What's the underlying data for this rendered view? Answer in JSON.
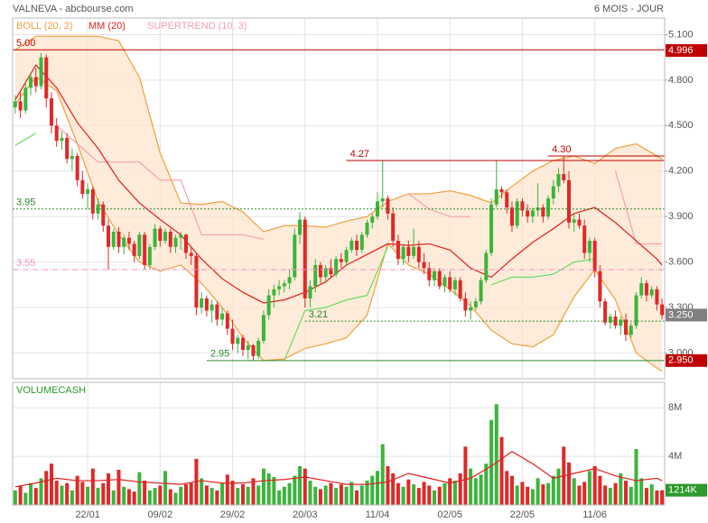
{
  "chart_data": {
    "type": "candlestick",
    "title": "VALNEVA - abcbourse.com",
    "period": "6 MOIS - JOUR",
    "xlim": [
      -0.5,
      125.5
    ],
    "xticks": [
      {
        "value": 14,
        "label": "22/01"
      },
      {
        "value": 28,
        "label": "09/02"
      },
      {
        "value": 42,
        "label": "29/02"
      },
      {
        "value": 56,
        "label": "20/03"
      },
      {
        "value": 70,
        "label": "11/04"
      },
      {
        "value": 84,
        "label": "02/05"
      },
      {
        "value": 98,
        "label": "22/05"
      },
      {
        "value": 112,
        "label": "11/06"
      }
    ],
    "ylim": [
      2.83,
      5.21
    ],
    "yticks": [
      {
        "value": 3,
        "label": "3.000"
      },
      {
        "value": 3.3,
        "label": "3.300"
      },
      {
        "value": 3.6,
        "label": "3.600"
      },
      {
        "value": 3.9,
        "label": "3.900"
      },
      {
        "value": 4.2,
        "label": "4.200"
      },
      {
        "value": 4.5,
        "label": "4.500"
      },
      {
        "value": 4.8,
        "label": "4.800"
      },
      {
        "value": 5.1,
        "label": "5.100"
      }
    ],
    "grid": true,
    "up_color": "#3cb43c",
    "down_color": "#e02828",
    "ohlc": [
      [
        4.62,
        4.7,
        4.58,
        4.66
      ],
      [
        4.66,
        4.72,
        4.55,
        4.6
      ],
      [
        4.6,
        4.78,
        4.58,
        4.75
      ],
      [
        4.75,
        4.85,
        4.7,
        4.82
      ],
      [
        4.82,
        4.88,
        4.72,
        4.76
      ],
      [
        4.76,
        4.98,
        4.74,
        4.95
      ],
      [
        4.95,
        4.97,
        4.62,
        4.68
      ],
      [
        4.68,
        4.72,
        4.45,
        4.5
      ],
      [
        4.5,
        4.55,
        4.36,
        4.4
      ],
      [
        4.4,
        4.46,
        4.34,
        4.42
      ],
      [
        4.42,
        4.45,
        4.25,
        4.28
      ],
      [
        4.28,
        4.35,
        4.2,
        4.3
      ],
      [
        4.3,
        4.32,
        4.1,
        4.14
      ],
      [
        4.14,
        4.2,
        4.02,
        4.05
      ],
      [
        4.05,
        4.12,
        3.95,
        4.08
      ],
      [
        4.08,
        4.1,
        3.88,
        3.92
      ],
      [
        3.92,
        4.02,
        3.88,
        3.98
      ],
      [
        3.98,
        4.0,
        3.8,
        3.84
      ],
      [
        3.84,
        3.88,
        3.55,
        3.7
      ],
      [
        3.7,
        3.82,
        3.68,
        3.8
      ],
      [
        3.8,
        3.83,
        3.66,
        3.7
      ],
      [
        3.7,
        3.78,
        3.65,
        3.76
      ],
      [
        3.76,
        3.8,
        3.68,
        3.72
      ],
      [
        3.72,
        3.74,
        3.6,
        3.64
      ],
      [
        3.64,
        3.8,
        3.62,
        3.78
      ],
      [
        3.78,
        3.8,
        3.55,
        3.58
      ],
      [
        3.58,
        3.72,
        3.55,
        3.7
      ],
      [
        3.7,
        3.85,
        3.68,
        3.82
      ],
      [
        3.82,
        3.84,
        3.7,
        3.74
      ],
      [
        3.74,
        3.82,
        3.72,
        3.8
      ],
      [
        3.8,
        3.82,
        3.66,
        3.7
      ],
      [
        3.7,
        3.78,
        3.66,
        3.76
      ],
      [
        3.76,
        3.8,
        3.68,
        3.78
      ],
      [
        3.78,
        3.79,
        3.62,
        3.66
      ],
      [
        3.66,
        3.7,
        3.58,
        3.64
      ],
      [
        3.64,
        3.66,
        3.25,
        3.3
      ],
      [
        3.3,
        3.4,
        3.26,
        3.36
      ],
      [
        3.36,
        3.38,
        3.24,
        3.28
      ],
      [
        3.28,
        3.35,
        3.2,
        3.32
      ],
      [
        3.32,
        3.34,
        3.18,
        3.22
      ],
      [
        3.22,
        3.3,
        3.18,
        3.26
      ],
      [
        3.26,
        3.28,
        3.12,
        3.16
      ],
      [
        3.16,
        3.22,
        3.02,
        3.06
      ],
      [
        3.06,
        3.12,
        3.0,
        3.1
      ],
      [
        3.1,
        3.12,
        2.98,
        3.02
      ],
      [
        3.02,
        3.08,
        2.96,
        3.05
      ],
      [
        3.05,
        3.06,
        2.95,
        2.98
      ],
      [
        2.98,
        3.1,
        2.96,
        3.08
      ],
      [
        3.08,
        3.28,
        3.06,
        3.25
      ],
      [
        3.25,
        3.42,
        3.22,
        3.38
      ],
      [
        3.38,
        3.45,
        3.3,
        3.42
      ],
      [
        3.42,
        3.48,
        3.38,
        3.44
      ],
      [
        3.44,
        3.48,
        3.4,
        3.46
      ],
      [
        3.46,
        3.55,
        3.42,
        3.5
      ],
      [
        3.5,
        3.82,
        3.48,
        3.78
      ],
      [
        3.78,
        3.93,
        3.72,
        3.88
      ],
      [
        3.88,
        3.9,
        3.3,
        3.36
      ],
      [
        3.36,
        3.48,
        3.3,
        3.44
      ],
      [
        3.44,
        3.62,
        3.4,
        3.58
      ],
      [
        3.58,
        3.6,
        3.46,
        3.5
      ],
      [
        3.5,
        3.58,
        3.46,
        3.56
      ],
      [
        3.56,
        3.62,
        3.5,
        3.52
      ],
      [
        3.52,
        3.64,
        3.5,
        3.62
      ],
      [
        3.62,
        3.66,
        3.56,
        3.6
      ],
      [
        3.6,
        3.7,
        3.58,
        3.68
      ],
      [
        3.68,
        3.76,
        3.66,
        3.74
      ],
      [
        3.74,
        3.78,
        3.64,
        3.68
      ],
      [
        3.68,
        3.8,
        3.66,
        3.78
      ],
      [
        3.78,
        3.88,
        3.76,
        3.86
      ],
      [
        3.86,
        3.92,
        3.82,
        3.9
      ],
      [
        3.9,
        4.06,
        3.88,
        4.0
      ],
      [
        4.0,
        4.27,
        3.96,
        4.02
      ],
      [
        4.02,
        4.04,
        3.88,
        3.92
      ],
      [
        3.92,
        3.96,
        3.7,
        3.74
      ],
      [
        3.74,
        3.78,
        3.58,
        3.62
      ],
      [
        3.62,
        3.72,
        3.58,
        3.7
      ],
      [
        3.7,
        3.74,
        3.6,
        3.64
      ],
      [
        3.64,
        3.82,
        3.62,
        3.7
      ],
      [
        3.7,
        3.74,
        3.56,
        3.6
      ],
      [
        3.6,
        3.66,
        3.52,
        3.56
      ],
      [
        3.56,
        3.6,
        3.44,
        3.48
      ],
      [
        3.48,
        3.56,
        3.44,
        3.54
      ],
      [
        3.54,
        3.56,
        3.42,
        3.44
      ],
      [
        3.44,
        3.52,
        3.4,
        3.5
      ],
      [
        3.5,
        3.54,
        3.4,
        3.42
      ],
      [
        3.42,
        3.5,
        3.38,
        3.48
      ],
      [
        3.48,
        3.5,
        3.34,
        3.36
      ],
      [
        3.36,
        3.4,
        3.24,
        3.28
      ],
      [
        3.28,
        3.34,
        3.22,
        3.3
      ],
      [
        3.3,
        3.36,
        3.28,
        3.34
      ],
      [
        3.34,
        3.5,
        3.32,
        3.48
      ],
      [
        3.48,
        3.68,
        3.46,
        3.66
      ],
      [
        3.66,
        4.02,
        3.64,
        3.98
      ],
      [
        3.98,
        4.27,
        3.96,
        4.08
      ],
      [
        4.08,
        4.1,
        4.02,
        4.06
      ],
      [
        4.06,
        4.08,
        3.92,
        3.96
      ],
      [
        3.96,
        4.0,
        3.8,
        3.84
      ],
      [
        3.84,
        4.02,
        3.82,
        4.0
      ],
      [
        4.0,
        4.02,
        3.9,
        3.94
      ],
      [
        3.94,
        3.98,
        3.86,
        3.9
      ],
      [
        3.9,
        3.96,
        3.86,
        3.94
      ],
      [
        3.94,
        4.12,
        3.9,
        3.96
      ],
      [
        3.96,
        3.98,
        3.86,
        3.9
      ],
      [
        3.9,
        4.04,
        3.88,
        4.02
      ],
      [
        4.02,
        4.14,
        3.98,
        4.1
      ],
      [
        4.1,
        4.22,
        4.06,
        4.18
      ],
      [
        4.18,
        4.3,
        4.12,
        4.14
      ],
      [
        4.14,
        4.2,
        3.82,
        3.86
      ],
      [
        3.86,
        3.92,
        3.8,
        3.88
      ],
      [
        3.88,
        3.92,
        3.82,
        3.84
      ],
      [
        3.84,
        3.88,
        3.62,
        3.66
      ],
      [
        3.66,
        3.76,
        3.6,
        3.74
      ],
      [
        3.74,
        3.76,
        3.5,
        3.54
      ],
      [
        3.54,
        3.58,
        3.3,
        3.34
      ],
      [
        3.34,
        3.36,
        3.18,
        3.2
      ],
      [
        3.2,
        3.26,
        3.16,
        3.24
      ],
      [
        3.24,
        3.28,
        3.16,
        3.18
      ],
      [
        3.18,
        3.24,
        3.12,
        3.22
      ],
      [
        3.22,
        3.26,
        3.08,
        3.12
      ],
      [
        3.12,
        3.2,
        3.1,
        3.18
      ],
      [
        3.18,
        3.4,
        3.16,
        3.38
      ],
      [
        3.38,
        3.5,
        3.36,
        3.46
      ],
      [
        3.46,
        3.48,
        3.34,
        3.38
      ],
      [
        3.38,
        3.44,
        3.36,
        3.42
      ],
      [
        3.42,
        3.44,
        3.28,
        3.32
      ],
      [
        3.32,
        3.36,
        3.22,
        3.25
      ]
    ],
    "overlay_x": [
      0,
      4,
      8,
      12,
      16,
      20,
      24,
      28,
      32,
      36,
      40,
      44,
      48,
      52,
      56,
      60,
      64,
      68,
      72,
      76,
      80,
      84,
      88,
      92,
      96,
      100,
      104,
      108,
      112,
      116,
      120,
      124,
      125
    ],
    "overlays": {
      "boll": {
        "name": "BOLL (20, 2)",
        "color": "#f0a040",
        "fill": "#fde4cc",
        "upper": [
          5.0,
          5.09,
          5.09,
          5.09,
          5.09,
          5.06,
          4.82,
          4.32,
          3.99,
          3.98,
          4.0,
          3.93,
          3.8,
          3.84,
          3.84,
          3.83,
          3.87,
          3.9,
          4.0,
          4.05,
          4.05,
          4.07,
          4.04,
          3.99,
          4.1,
          4.2,
          4.27,
          4.3,
          4.25,
          4.35,
          4.38,
          4.3,
          4.28
        ],
        "lower": [
          4.64,
          4.82,
          4.73,
          4.38,
          4.0,
          3.78,
          3.6,
          3.54,
          3.58,
          3.46,
          3.3,
          3.1,
          2.95,
          2.96,
          3.03,
          3.06,
          3.1,
          3.25,
          3.72,
          3.58,
          3.52,
          3.42,
          3.31,
          3.15,
          3.06,
          3.04,
          3.12,
          3.37,
          3.55,
          3.35,
          3.0,
          2.9,
          2.88
        ]
      },
      "mm": {
        "name": "MM (20)",
        "color": "#e02020",
        "values": [
          4.67,
          4.9,
          4.75,
          4.52,
          4.35,
          4.14,
          3.99,
          3.88,
          3.78,
          3.62,
          3.49,
          3.4,
          3.33,
          3.35,
          3.4,
          3.47,
          3.58,
          3.65,
          3.72,
          3.71,
          3.72,
          3.68,
          3.56,
          3.5,
          3.62,
          3.73,
          3.82,
          3.92,
          3.96,
          3.86,
          3.74,
          3.62,
          3.58
        ]
      },
      "supertrend": {
        "name": "SUPERTREND (10, 3)",
        "color": "#f4a0b0",
        "values": [
          null,
          null,
          4.5,
          4.38,
          4.26,
          4.26,
          4.26,
          4.14,
          4.14,
          3.78,
          3.78,
          3.78,
          3.75,
          null,
          null,
          null,
          null,
          null,
          null,
          4.05,
          3.95,
          3.9,
          3.9,
          null,
          null,
          null,
          null,
          null,
          null,
          4.2,
          3.72,
          3.72,
          3.72
        ],
        "up_color": "#66dd66",
        "up_values": [
          4.37,
          4.45,
          null,
          null,
          null,
          null,
          null,
          null,
          null,
          null,
          null,
          null,
          null,
          2.95,
          3.28,
          3.3,
          3.35,
          3.38,
          3.7,
          null,
          null,
          null,
          null,
          3.45,
          3.5,
          3.5,
          3.52,
          3.6,
          3.62,
          null,
          null,
          null,
          null
        ]
      }
    },
    "levels": [
      {
        "value": 5.0,
        "label": "5.00",
        "color": "#c00000",
        "style": "solid",
        "start": -0.5
      },
      {
        "value": 4.27,
        "label": "4.27",
        "color": "#c00000",
        "style": "solid",
        "start": 64
      },
      {
        "value": 4.3,
        "label": "4.30",
        "color": "#c00000",
        "style": "solid",
        "start": 103
      },
      {
        "value": 3.95,
        "label": "3.95",
        "color": "#2a8a2a",
        "style": "dotted",
        "start": -0.5
      },
      {
        "value": 3.55,
        "label": "3.55",
        "color": "#f090c8",
        "style": "dashdot",
        "start": -0.5
      },
      {
        "value": 3.21,
        "label": "3.21",
        "color": "#2a8a2a",
        "style": "dotted",
        "start": 56
      },
      {
        "value": 2.95,
        "label": "2.95",
        "color": "#2a8a2a",
        "style": "solid",
        "start": 37
      }
    ],
    "badges": [
      {
        "value": 4.996,
        "label": "4.996",
        "color": "#c00000"
      },
      {
        "value": 3.25,
        "label": "3.250",
        "color": "#808080"
      },
      {
        "value": 2.95,
        "label": "2.950",
        "color": "#c00000"
      }
    ],
    "volume": {
      "title": "VOLUMECASH",
      "ylim": [
        0,
        10.1
      ],
      "yticks": [
        {
          "value": 4,
          "label": "4M"
        },
        {
          "value": 8,
          "label": "8M"
        }
      ],
      "values": [
        1.2,
        1.6,
        1.0,
        1.8,
        1.4,
        2.2,
        2.8,
        3.4,
        2.0,
        1.6,
        1.8,
        1.2,
        2.4,
        1.9,
        1.5,
        3.0,
        1.4,
        1.8,
        2.6,
        1.2,
        2.9,
        1.5,
        1.3,
        1.1,
        2.7,
        2.0,
        1.2,
        1.4,
        1.6,
        2.8,
        1.3,
        1.0,
        1.5,
        1.7,
        1.8,
        3.8,
        2.2,
        1.6,
        1.4,
        1.2,
        1.8,
        2.5,
        2.0,
        1.4,
        1.7,
        1.5,
        2.2,
        1.6,
        3.0,
        2.6,
        2.3,
        1.2,
        1.5,
        1.8,
        2.4,
        3.2,
        3.0,
        2.0,
        1.5,
        1.3,
        1.6,
        1.8,
        1.4,
        1.7,
        1.5,
        1.9,
        1.2,
        1.6,
        2.0,
        2.4,
        2.8,
        5.0,
        3.2,
        2.6,
        1.8,
        1.5,
        2.1,
        1.7,
        1.4,
        1.9,
        1.6,
        1.2,
        1.5,
        1.8,
        2.2,
        2.0,
        2.6,
        4.8,
        3.0,
        2.2,
        2.5,
        3.4,
        7.0,
        8.3,
        5.6,
        2.8,
        2.4,
        1.6,
        1.9,
        1.5,
        1.3,
        2.2,
        1.7,
        1.8,
        2.4,
        3.0,
        4.8,
        3.5,
        2.2,
        1.6,
        1.9,
        2.8,
        3.2,
        2.4,
        1.6,
        1.4,
        1.8,
        2.6,
        2.0,
        1.5,
        4.6,
        2.2,
        1.4,
        1.7,
        1.2,
        1.214
      ],
      "ma_color": "#e02020",
      "ma": [
        1.5,
        1.8,
        2.2,
        2.0,
        2.0,
        2.1,
        1.9,
        1.8,
        1.7,
        2.0,
        1.8,
        1.8,
        2.0,
        2.1,
        2.3,
        2.0,
        1.7,
        1.7,
        1.9,
        2.6,
        2.2,
        1.8,
        2.2,
        3.2,
        4.4,
        3.4,
        2.2,
        2.6,
        3.0,
        2.4,
        2.0,
        2.2,
        2.0
      ],
      "badge": {
        "value": 1.214,
        "label": "1214K",
        "color": "#2a9a2a"
      }
    }
  }
}
